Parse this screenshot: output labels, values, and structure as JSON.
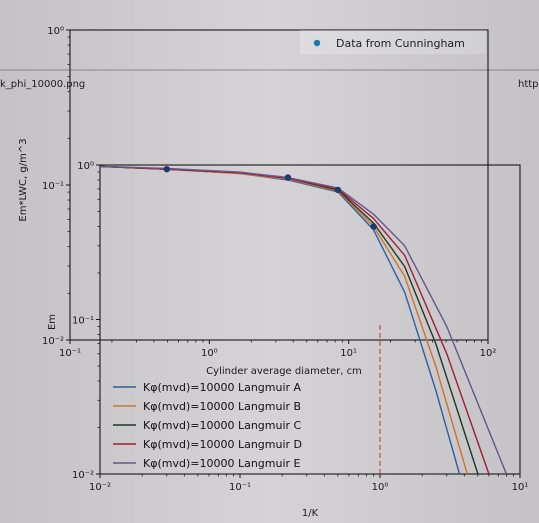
{
  "header": {
    "filename": "k_phi_10000.png",
    "url_fragment": "http"
  },
  "colors": {
    "background": "#d5d3d6",
    "axes": "#1a1a1a",
    "data_points": "#1f3a6e",
    "legend_marker": "#1f77b4",
    "reference_line": "#e0302f"
  },
  "chart_data": [
    {
      "id": "back",
      "type": "scatter",
      "title": "",
      "xlabel": "Cylinder average diameter, cm",
      "ylabel": "Em*LWC, g/m^3",
      "x_scale": "log",
      "y_scale": "log",
      "xlim": [
        0.1,
        100
      ],
      "ylim": [
        0.01,
        1
      ],
      "x_ticks": [
        0.1,
        1,
        10,
        100
      ],
      "x_tick_labels": [
        "10⁻¹",
        "10⁰",
        "10¹",
        "10²"
      ],
      "y_ticks": [
        0.01,
        0.1,
        1
      ],
      "y_tick_labels": [
        "10⁻²",
        "10⁻¹",
        "10⁰"
      ],
      "legend_position": "top-right",
      "series": [
        {
          "name": "Data from Cunningham",
          "x": [],
          "y": []
        }
      ]
    },
    {
      "id": "front",
      "type": "line",
      "title": "",
      "xlabel": "1/K",
      "ylabel": "Em",
      "x_scale": "log",
      "y_scale": "log",
      "xlim": [
        0.01,
        10
      ],
      "ylim": [
        0.01,
        1
      ],
      "x_ticks": [
        0.01,
        0.1,
        1,
        10
      ],
      "x_tick_labels": [
        "10⁻²",
        "10⁻¹",
        "10⁰",
        "10¹"
      ],
      "y_ticks": [
        0.01,
        0.1,
        1
      ],
      "y_tick_labels": [
        "10⁻²",
        "10⁻¹",
        "10⁰"
      ],
      "legend_position": "bottom-left",
      "reference_line": {
        "x": 1
      },
      "scatter_points": {
        "x": [
          0.03,
          0.22,
          0.5,
          0.9
        ],
        "y": [
          0.94,
          0.83,
          0.69,
          0.4
        ]
      },
      "series": [
        {
          "name": "Kφ(mvd)=10000 Langmuir A",
          "color": "#2f64a8",
          "x": [
            0.01,
            0.03,
            0.1,
            0.22,
            0.5,
            0.9,
            1.5,
            2.5,
            3.7
          ],
          "y": [
            0.98,
            0.94,
            0.88,
            0.8,
            0.67,
            0.38,
            0.15,
            0.035,
            0.01
          ]
        },
        {
          "name": "Kφ(mvd)=10000 Langmuir B",
          "color": "#d9792b",
          "x": [
            0.01,
            0.03,
            0.1,
            0.22,
            0.5,
            0.9,
            1.5,
            2.5,
            4.2
          ],
          "y": [
            0.98,
            0.94,
            0.88,
            0.81,
            0.68,
            0.4,
            0.19,
            0.05,
            0.01
          ]
        },
        {
          "name": "Kφ(mvd)=10000 Langmuir C",
          "color": "#1e3d22",
          "x": [
            0.01,
            0.03,
            0.1,
            0.22,
            0.5,
            0.9,
            1.5,
            2.5,
            5.0
          ],
          "y": [
            0.98,
            0.94,
            0.89,
            0.82,
            0.69,
            0.42,
            0.22,
            0.07,
            0.01
          ]
        },
        {
          "name": "Kφ(mvd)=10000 Langmuir D",
          "color": "#a6203a",
          "x": [
            0.01,
            0.03,
            0.1,
            0.22,
            0.5,
            0.9,
            1.5,
            3.0,
            6.0
          ],
          "y": [
            0.98,
            0.94,
            0.89,
            0.82,
            0.7,
            0.45,
            0.26,
            0.06,
            0.01
          ]
        },
        {
          "name": "Kφ(mvd)=10000 Langmuir E",
          "color": "#6a5a92",
          "x": [
            0.01,
            0.03,
            0.1,
            0.22,
            0.5,
            0.9,
            1.5,
            3.0,
            8.0
          ],
          "y": [
            0.98,
            0.95,
            0.9,
            0.83,
            0.71,
            0.48,
            0.3,
            0.09,
            0.01
          ]
        }
      ]
    }
  ]
}
